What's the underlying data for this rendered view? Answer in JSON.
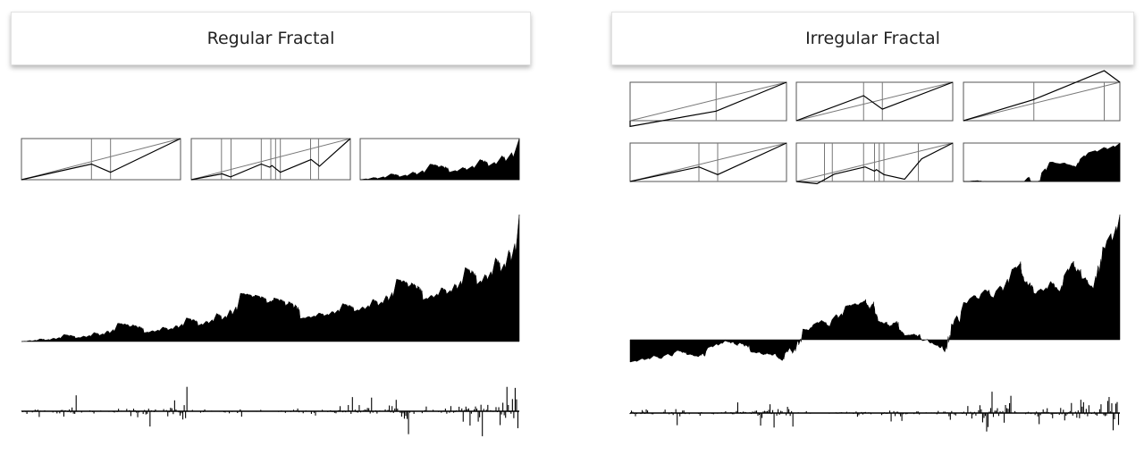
{
  "panels": {
    "left": {
      "title": "Regular Fractal"
    },
    "right": {
      "title": "Irregular Fractal"
    }
  },
  "colors": {
    "ink": "#000000",
    "frame": "#555555",
    "guide": "#777777"
  }
}
